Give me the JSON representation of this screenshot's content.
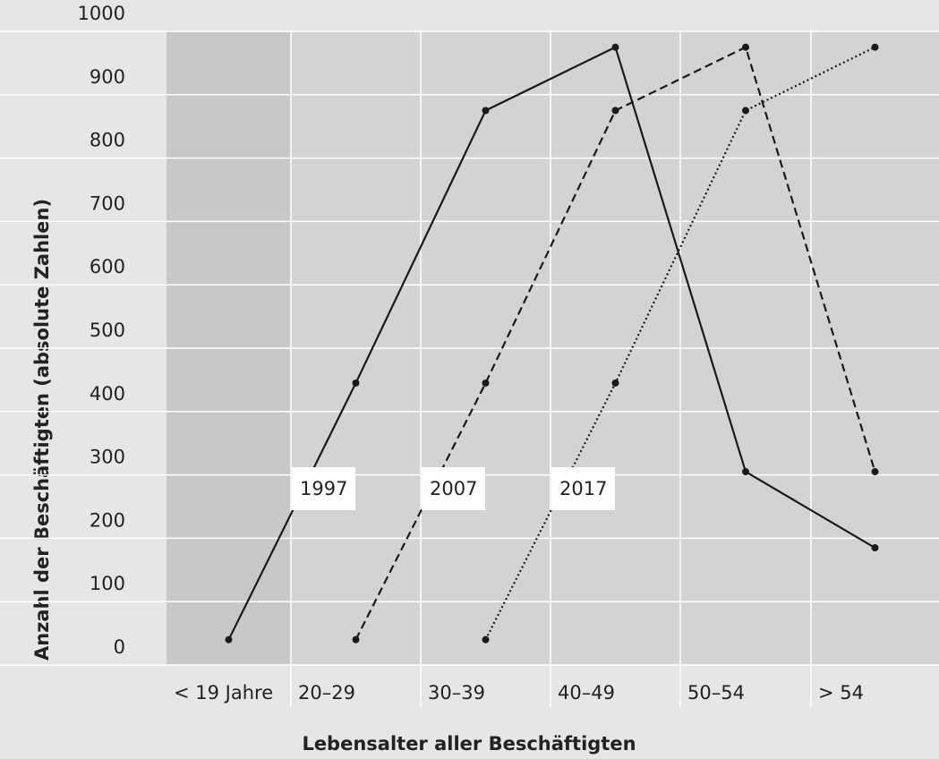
{
  "chart_data": {
    "type": "line",
    "x_label": "Lebensalter aller Beschäftigten",
    "y_label": "Anzahl der Beschäftigten (absolute Zahlen)",
    "categories": [
      "< 19 Jahre",
      "20–29",
      "30–39",
      "40–49",
      "50–54",
      "> 54"
    ],
    "series": [
      {
        "name": "1997",
        "color": "#1a1a1a",
        "dash": "solid",
        "values": [
          40,
          445,
          875,
          975,
          305,
          185
        ]
      },
      {
        "name": "2007",
        "color": "#1a1a1a",
        "dash": "dashed",
        "values": [
          null,
          40,
          445,
          875,
          975,
          305
        ]
      },
      {
        "name": "2017",
        "color": "#1a1a1a",
        "dash": "dotted",
        "values": [
          null,
          null,
          40,
          445,
          875,
          975
        ]
      }
    ],
    "ylim": [
      0,
      1000
    ],
    "yticks": [
      0,
      100,
      200,
      300,
      400,
      500,
      600,
      700,
      800,
      900,
      1000
    ],
    "grid": true
  }
}
